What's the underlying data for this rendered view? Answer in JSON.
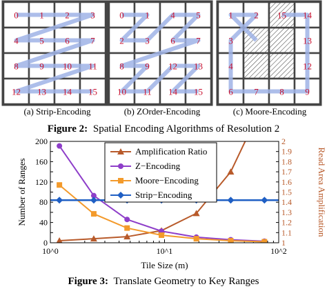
{
  "figure2": {
    "panels": [
      {
        "caption": "(a) Strip-Encoding",
        "cells": [
          [
            "0",
            "1",
            "2",
            "3"
          ],
          [
            "4",
            "5",
            "6",
            "7"
          ],
          [
            "8",
            "9",
            "10",
            "11"
          ],
          [
            "12",
            "13",
            "14",
            "15"
          ]
        ]
      },
      {
        "caption": "(b) ZOrder-Encoding",
        "cells": [
          [
            "0",
            "1",
            "4",
            "5"
          ],
          [
            "2",
            "3",
            "6",
            "7"
          ],
          [
            "8",
            "9",
            "12",
            "13"
          ],
          [
            "10",
            "11",
            "14",
            "15"
          ]
        ]
      },
      {
        "caption": "(c) Moore-Encoding",
        "cells": [
          [
            "1",
            "2",
            "15",
            "14"
          ],
          [
            "3",
            "",
            "",
            "13"
          ],
          [
            "4",
            "",
            "",
            "12"
          ],
          [
            "6",
            "7",
            "8",
            "9"
          ]
        ]
      }
    ],
    "caption_label": "Figure 2:",
    "caption_text": "Spatial Encoding Algorithms of Resolution 2"
  },
  "figure3": {
    "caption_label": "Figure 3:",
    "caption_text": "Translate Geometry to Key Ranges"
  },
  "chart_data": {
    "type": "line",
    "xlabel": "Tile Size (m)",
    "ylabel": "Number of Ranges",
    "y2label": "Read Area Amplification",
    "xscale": "log",
    "xlim": [
      1,
      100
    ],
    "ylim": [
      0,
      200
    ],
    "y2lim": [
      1,
      2
    ],
    "x_ticks": [
      "10^0",
      "10^1",
      "10^2"
    ],
    "y_ticks": [
      "0",
      "20",
      "40",
      "60",
      "80",
      "100",
      "120",
      "140",
      "160",
      "180",
      "200"
    ],
    "y2_ticks": [
      "1",
      "1.1",
      "1.2",
      "1.3",
      "1.4",
      "1.5",
      "1.6",
      "1.7",
      "1.8",
      "1.9",
      "2"
    ],
    "legend_position": "top-center",
    "series": [
      {
        "name": "Amplification Ratio",
        "axis": "right",
        "color": "#b85a2a",
        "marker": "triangle",
        "x": [
          1.2,
          2.4,
          4.7,
          9.4,
          19,
          38,
          75
        ],
        "y": [
          1.02,
          1.04,
          1.06,
          1.12,
          1.29,
          1.7,
          2.4
        ]
      },
      {
        "name": "Z−Encoding",
        "axis": "left",
        "color": "#8e3ec9",
        "marker": "circle",
        "x": [
          1.2,
          2.4,
          4.7,
          9.4,
          19,
          38,
          75
        ],
        "y": [
          191,
          93,
          46,
          23,
          11,
          6,
          3
        ]
      },
      {
        "name": "Moore−Encoding",
        "axis": "left",
        "color": "#f39a2b",
        "marker": "square",
        "x": [
          1.2,
          2.4,
          4.7,
          9.4,
          19,
          38,
          75
        ],
        "y": [
          114,
          57,
          29,
          15,
          8,
          4,
          2
        ]
      },
      {
        "name": "Strip−Encoding",
        "axis": "left",
        "color": "#1f5fc4",
        "marker": "diamond",
        "x": [
          1.2,
          2.4,
          4.7,
          9.4,
          19,
          38,
          75
        ],
        "y": [
          84,
          84,
          84,
          84,
          84,
          84,
          84
        ]
      }
    ]
  }
}
